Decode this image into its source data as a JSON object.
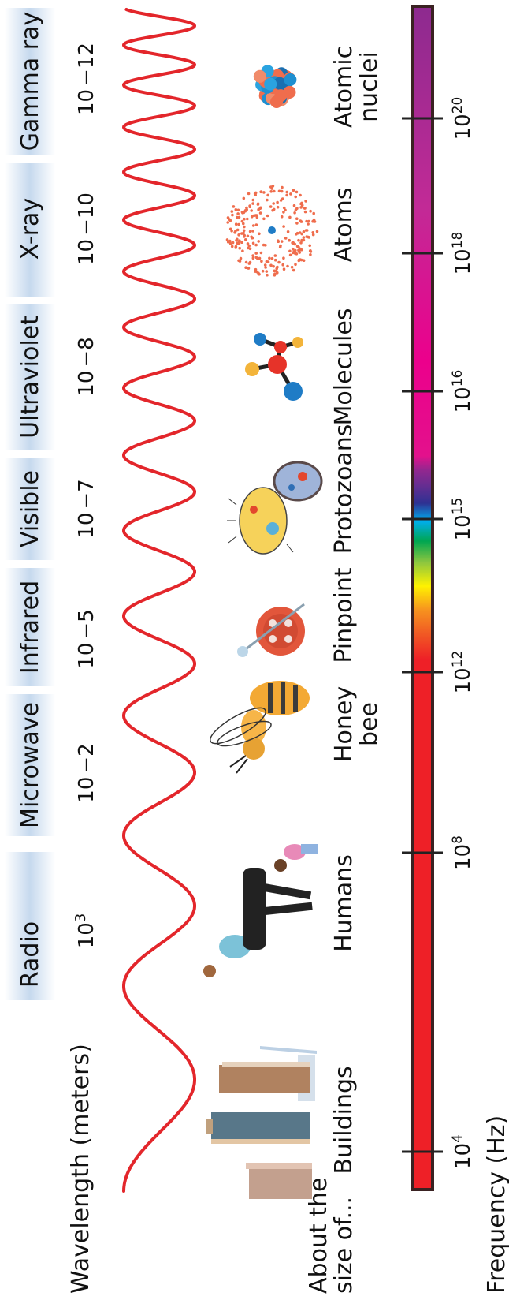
{
  "labels": {
    "wavelength": "Wavelength (meters)",
    "about_line1": "About the",
    "about_line2": "size of...",
    "frequency": "Frequency (Hz)"
  },
  "bands": [
    {
      "name": "Radio",
      "wl_base": "10",
      "wl_exp": "3"
    },
    {
      "name": "Microwave",
      "wl_base": "10",
      "wl_exp": "−2"
    },
    {
      "name": "Infrared",
      "wl_base": "10",
      "wl_exp": "−5"
    },
    {
      "name": "Visible",
      "wl_base": "10",
      "wl_exp": "−7"
    },
    {
      "name": "Ultraviolet",
      "wl_base": "10",
      "wl_exp": "−8"
    },
    {
      "name": "X-ray",
      "wl_base": "10",
      "wl_exp": "−10"
    },
    {
      "name": "Gamma ray",
      "wl_base": "10",
      "wl_exp": "−12"
    }
  ],
  "objects": [
    {
      "line1": "Buildings",
      "line2": "",
      "icon": "buildings-icon"
    },
    {
      "line1": "Humans",
      "line2": "",
      "icon": "humans-icon"
    },
    {
      "line1": "Honey",
      "line2": "bee",
      "icon": "honey-bee-icon"
    },
    {
      "line1": "Pinpoint",
      "line2": "",
      "icon": "pinpoint-icon"
    },
    {
      "line1": "Protozoans",
      "line2": "",
      "icon": "protozoans-icon"
    },
    {
      "line1": "Molecules",
      "line2": "",
      "icon": "molecules-icon"
    },
    {
      "line1": "Atoms",
      "line2": "",
      "icon": "atoms-icon"
    },
    {
      "line1": "Atomic",
      "line2": "nuclei",
      "icon": "atomic-nuclei-icon"
    }
  ],
  "frequency_ticks": [
    {
      "base": "10",
      "exp": "4"
    },
    {
      "base": "10",
      "exp": "8"
    },
    {
      "base": "10",
      "exp": "12"
    },
    {
      "base": "10",
      "exp": "15"
    },
    {
      "base": "10",
      "exp": "16"
    },
    {
      "base": "10",
      "exp": "18"
    },
    {
      "base": "10",
      "exp": "20"
    }
  ],
  "colors": {
    "wave": "#e3262b",
    "band_bg": "#c9dbef",
    "bar_outline": "#3a2222",
    "red": "#ee2027",
    "magenta": "#e3118c",
    "purple": "#8d2a8f"
  }
}
